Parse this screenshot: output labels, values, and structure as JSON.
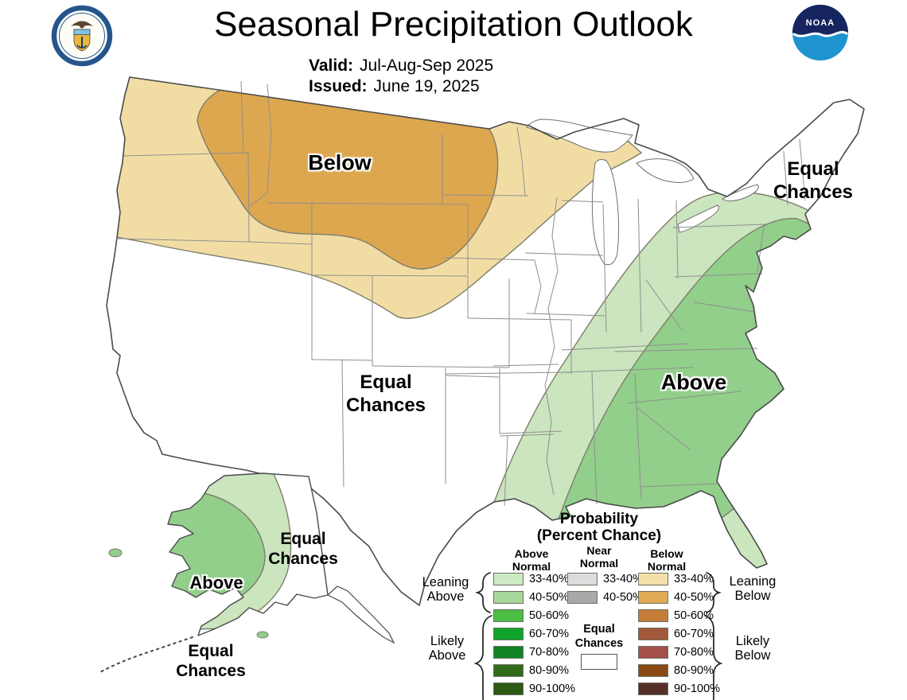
{
  "header": {
    "title": "Seasonal Precipitation Outlook",
    "valid_label": "Valid:",
    "valid_value": "Jul-Aug-Sep 2025",
    "issued_label": "Issued:",
    "issued_value": "June 19, 2025",
    "noaa_logo_text": "NOAA"
  },
  "map": {
    "labels": {
      "below": "Below",
      "above_southeast": "Above",
      "above_alaska": "Above",
      "equal_chances_northeast": "Equal\nChances",
      "equal_chances_central": "Equal\nChances",
      "equal_chances_alaska_east": "Equal\nChances",
      "equal_chances_alaska_south": "Equal\nChances"
    }
  },
  "colors": {
    "below_33_40": "#f1dda4",
    "below_40_50": "#dda74f",
    "above_33_40": "#cbe5bf",
    "above_40_50": "#92cf8b",
    "region_border": "#7d7c6b",
    "state_line": "#8f8f8f",
    "us_outline": "#4a4a4a",
    "lake_fill": "#ffffff",
    "white": "#ffffff"
  },
  "legend": {
    "title_line1": "Probability",
    "title_line2": "(Percent Chance)",
    "columns": [
      {
        "id": "above",
        "header": "Above\nNormal",
        "rows": [
          {
            "label": "33-40%",
            "color": "#cde9c3"
          },
          {
            "label": "40-50%",
            "color": "#a6d89a"
          },
          {
            "label": "50-60%",
            "color": "#4cbd45"
          },
          {
            "label": "60-70%",
            "color": "#0fa42c"
          },
          {
            "label": "70-80%",
            "color": "#108423"
          },
          {
            "label": "80-90%",
            "color": "#2f6b1b"
          },
          {
            "label": "90-100%",
            "color": "#2b5a13"
          }
        ]
      },
      {
        "id": "near",
        "header": "Near\nNormal",
        "rows": [
          {
            "label": "33-40%",
            "color": "#dcdcdc"
          },
          {
            "label": "40-50%",
            "color": "#a9a9a9"
          }
        ]
      },
      {
        "id": "below",
        "header": "Below\nNormal",
        "rows": [
          {
            "label": "33-40%",
            "color": "#f3e0a9"
          },
          {
            "label": "40-50%",
            "color": "#e0aa56"
          },
          {
            "label": "50-60%",
            "color": "#c67d3a"
          },
          {
            "label": "60-70%",
            "color": "#a2583a"
          },
          {
            "label": "70-80%",
            "color": "#a44f4a"
          },
          {
            "label": "80-90%",
            "color": "#8a4a13"
          },
          {
            "label": "90-100%",
            "color": "#553029"
          }
        ]
      }
    ],
    "equal_chances_label": "Equal\nChances",
    "equal_chances_color": "#ffffff",
    "brackets": {
      "leaning_above": "Leaning\nAbove",
      "likely_above": "Likely\nAbove",
      "leaning_below": "Leaning\nBelow",
      "likely_below": "Likely\nBelow"
    }
  }
}
